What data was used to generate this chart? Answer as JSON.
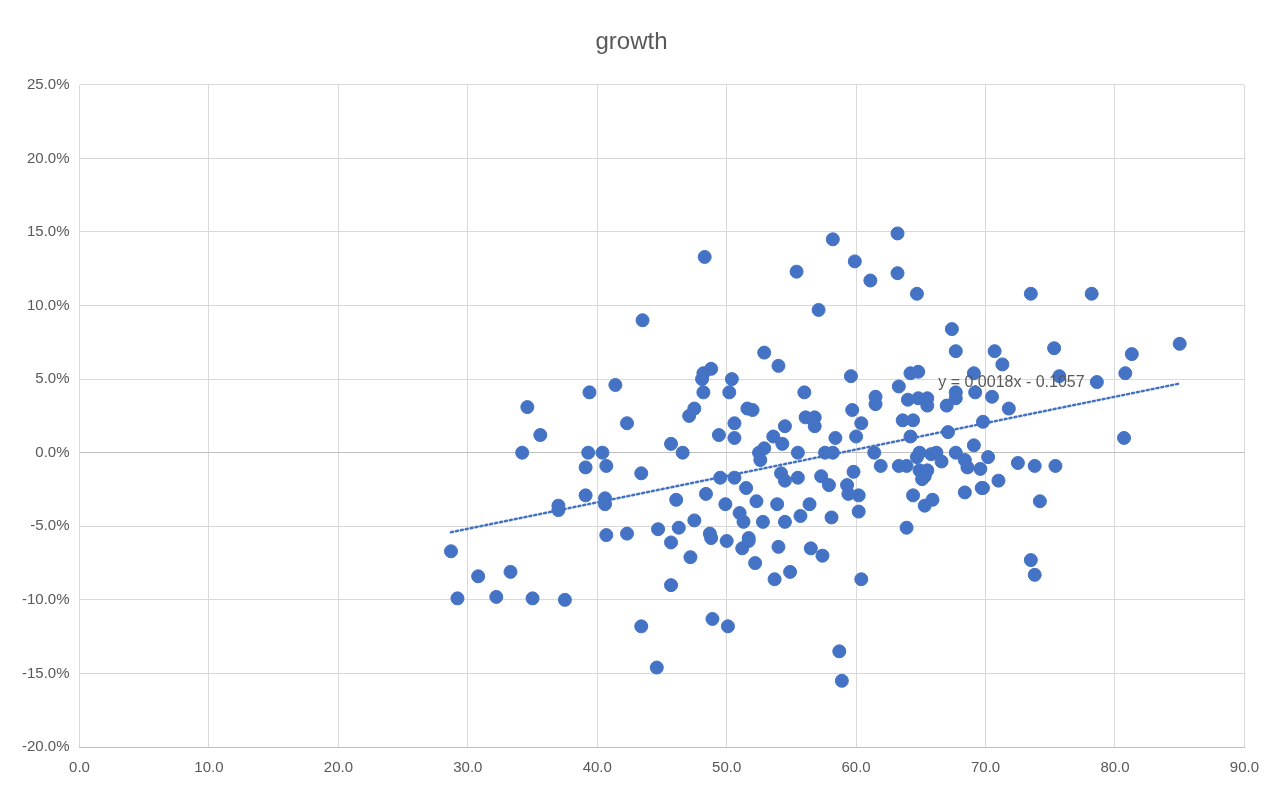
{
  "chart_data": {
    "type": "scatter",
    "title": "growth",
    "grid": true,
    "legend": false,
    "marker": "circle",
    "xlim": [
      0,
      90
    ],
    "xticks": [
      {
        "value": 0,
        "label": "0.0"
      },
      {
        "value": 10,
        "label": "10.0"
      },
      {
        "value": 20,
        "label": "20.0"
      },
      {
        "value": 30,
        "label": "30.0"
      },
      {
        "value": 40,
        "label": "40.0"
      },
      {
        "value": 50,
        "label": "50.0"
      },
      {
        "value": 60,
        "label": "60.0"
      },
      {
        "value": 70,
        "label": "70.0"
      },
      {
        "value": 80,
        "label": "80.0"
      },
      {
        "value": 90,
        "label": "90.0"
      }
    ],
    "ylim": [
      -20,
      25
    ],
    "yticks": [
      {
        "value": -20,
        "label": "-20.0%"
      },
      {
        "value": -15,
        "label": "-15.0%"
      },
      {
        "value": -10,
        "label": "-10.0%"
      },
      {
        "value": -5,
        "label": "-5.0%"
      },
      {
        "value": 0,
        "label": "0.0%"
      },
      {
        "value": 5,
        "label": "5.0%"
      },
      {
        "value": 10,
        "label": "10.0%"
      },
      {
        "value": 15,
        "label": "15.0%"
      },
      {
        "value": 20,
        "label": "20.0%"
      },
      {
        "value": 25,
        "label": "25.0%"
      }
    ],
    "annotations": [
      "y = 0.0018x - 0.1057"
    ],
    "series": [
      {
        "color": "#4472c4",
        "x": [
          28.7,
          29.2,
          30.8,
          32.2,
          33.3,
          34.2,
          34.6,
          35.0,
          35.6,
          37.0,
          37.0,
          37.5,
          39.1,
          39.1,
          39.3,
          39.4,
          40.4,
          40.6,
          40.6,
          40.7,
          40.7,
          41.4,
          42.3,
          42.3,
          43.4,
          43.5,
          43.4,
          44.6,
          44.7,
          45.7,
          45.7,
          45.7,
          46.1,
          46.3,
          46.6,
          47.1,
          47.2,
          47.5,
          47.5,
          48.1,
          48.2,
          48.2,
          48.3,
          48.4,
          48.7,
          48.8,
          48.8,
          48.9,
          49.4,
          49.5,
          49.9,
          50.0,
          50.1,
          50.2,
          50.4,
          50.6,
          50.6,
          50.6,
          51.0,
          51.2,
          51.3,
          51.5,
          51.6,
          51.7,
          51.7,
          52.0,
          52.2,
          52.3,
          52.5,
          52.6,
          52.8,
          52.9,
          52.9,
          53.6,
          53.7,
          53.9,
          54.0,
          54.0,
          54.2,
          54.3,
          54.5,
          54.5,
          54.5,
          54.9,
          55.4,
          55.5,
          55.5,
          55.7,
          56.0,
          56.1,
          56.4,
          56.5,
          56.8,
          56.8,
          57.1,
          57.3,
          57.4,
          57.6,
          57.9,
          58.1,
          58.2,
          58.2,
          58.4,
          58.7,
          58.9,
          59.3,
          59.4,
          59.6,
          59.7,
          59.8,
          59.9,
          60.0,
          60.2,
          60.2,
          60.4,
          60.4,
          61.1,
          61.4,
          61.5,
          61.5,
          61.9,
          63.2,
          63.2,
          63.3,
          63.3,
          63.6,
          63.9,
          63.9,
          64.0,
          64.2,
          64.2,
          64.4,
          64.4,
          64.7,
          64.7,
          64.8,
          64.8,
          64.9,
          64.9,
          65.1,
          65.3,
          65.3,
          65.5,
          65.5,
          65.5,
          65.8,
          65.9,
          66.2,
          66.6,
          67.0,
          67.1,
          67.4,
          67.7,
          67.7,
          67.7,
          67.7,
          68.4,
          68.4,
          68.6,
          69.1,
          69.2,
          69.1,
          69.6,
          69.7,
          69.8,
          69.8,
          70.2,
          70.5,
          70.7,
          71.0,
          71.3,
          71.8,
          72.5,
          73.5,
          73.5,
          73.8,
          73.8,
          74.2,
          75.3,
          75.4,
          75.7,
          78.2,
          78.6,
          80.7,
          80.8,
          81.3,
          85.0
        ],
        "values": [
          -6.7,
          -9.9,
          -8.4,
          -9.8,
          -8.1,
          0.0,
          3.1,
          -9.9,
          1.2,
          -3.6,
          -3.9,
          -10.0,
          -2.9,
          -1.0,
          0.0,
          4.1,
          0.0,
          -3.1,
          -3.5,
          -5.6,
          -0.9,
          4.6,
          2.0,
          -5.5,
          -1.4,
          9.0,
          -11.8,
          -14.6,
          -5.2,
          0.6,
          -6.1,
          -9.0,
          -3.2,
          -5.1,
          0.0,
          2.5,
          -7.1,
          -4.6,
          3.0,
          5.0,
          5.4,
          4.1,
          13.3,
          -2.8,
          -5.5,
          5.7,
          -5.8,
          -11.3,
          1.2,
          -1.7,
          -3.5,
          -6.0,
          -11.8,
          4.1,
          5.0,
          2.0,
          1.0,
          -1.7,
          -4.1,
          -6.5,
          -4.7,
          -2.4,
          3.0,
          -5.8,
          -6.0,
          2.9,
          -7.5,
          -3.3,
          0.0,
          -0.5,
          -4.7,
          6.8,
          0.3,
          1.1,
          -8.6,
          -3.5,
          -6.4,
          5.9,
          -1.4,
          0.6,
          1.8,
          -1.9,
          -4.7,
          -8.1,
          12.3,
          0.0,
          -1.7,
          -4.3,
          4.1,
          2.4,
          -3.5,
          -6.5,
          2.4,
          1.8,
          9.7,
          -1.6,
          -7.0,
          0.0,
          -2.2,
          -4.4,
          0.0,
          14.5,
          1.0,
          -13.5,
          -15.5,
          -2.2,
          -2.8,
          5.2,
          2.9,
          -1.3,
          13.0,
          1.1,
          -2.9,
          -4.0,
          2.0,
          -8.6,
          11.7,
          0.0,
          3.8,
          3.3,
          -0.9,
          14.9,
          12.2,
          4.5,
          -0.9,
          2.2,
          -0.9,
          -5.1,
          3.6,
          5.4,
          1.1,
          -2.9,
          2.2,
          10.8,
          -0.3,
          5.5,
          3.7,
          0.0,
          -1.2,
          -1.8,
          -3.6,
          -1.6,
          3.7,
          3.2,
          -1.2,
          -0.1,
          -3.2,
          0.0,
          -0.6,
          3.2,
          1.4,
          8.4,
          6.9,
          4.1,
          3.7,
          0.0,
          -2.7,
          -0.5,
          -1.0,
          5.4,
          4.1,
          0.5,
          -1.1,
          -2.4,
          -2.4,
          2.1,
          -0.3,
          3.8,
          6.9,
          -1.9,
          6.0,
          3.0,
          -0.7,
          -7.3,
          10.8,
          -0.9,
          -8.3,
          -3.3,
          7.1,
          -0.9,
          5.2,
          10.8,
          4.8,
          1.0,
          5.4,
          6.7,
          7.4
        ]
      },
      {
        "type": "line",
        "color": "#4472c4",
        "x": [
          28.7,
          85.0
        ],
        "values": [
          -5.4,
          4.7
        ],
        "line_style": "dotted",
        "marker": "none"
      }
    ]
  }
}
